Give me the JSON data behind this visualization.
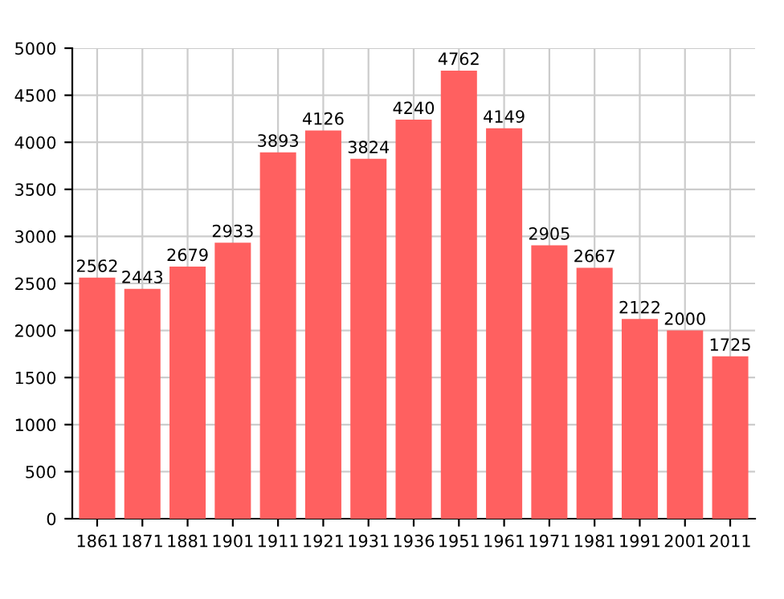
{
  "chart_data": {
    "type": "bar",
    "categories": [
      "1861",
      "1871",
      "1881",
      "1901",
      "1911",
      "1921",
      "1931",
      "1936",
      "1951",
      "1961",
      "1971",
      "1981",
      "1991",
      "2001",
      "2011"
    ],
    "values": [
      2562,
      2443,
      2679,
      2933,
      3893,
      4126,
      3824,
      4240,
      4762,
      4149,
      2905,
      2667,
      2122,
      2000,
      1725
    ],
    "color": "#ff6060",
    "ylim": [
      0,
      5000
    ],
    "yticks": [
      0,
      500,
      1000,
      1500,
      2000,
      2500,
      3000,
      3500,
      4000,
      4500,
      5000
    ],
    "grid": true,
    "data_labels": true
  }
}
